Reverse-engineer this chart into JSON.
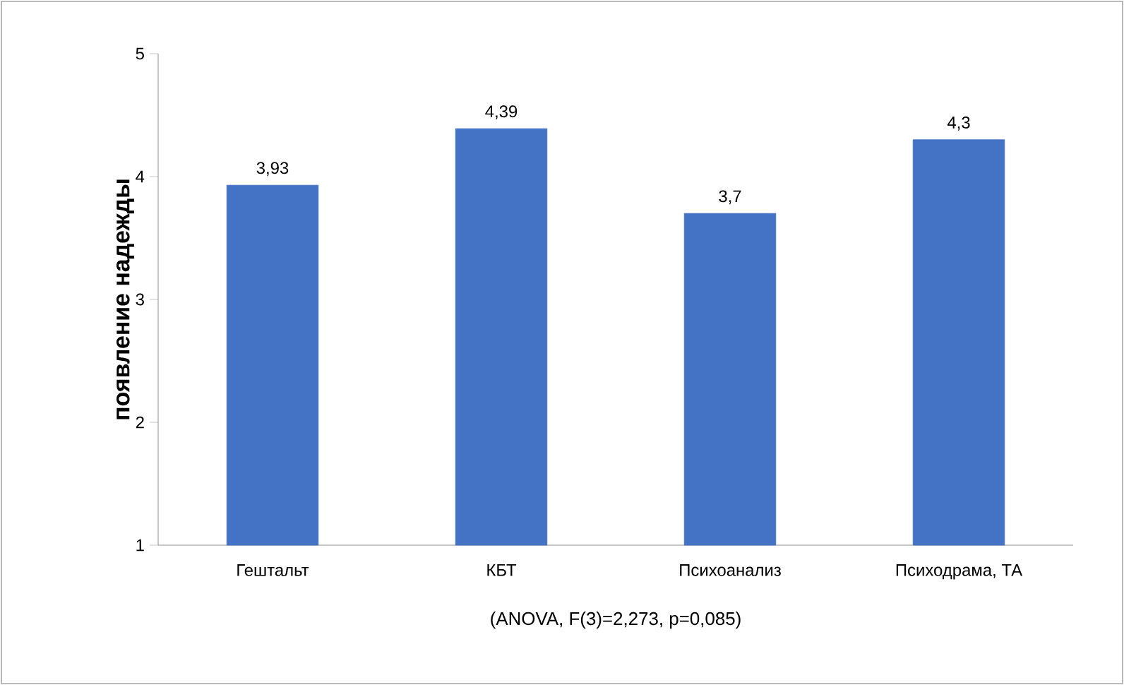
{
  "chart_data": {
    "type": "bar",
    "ylabel": "появление надежды",
    "xlabel": "(ANOVA, F(3)=2,273,  p=0,085)",
    "categories": [
      "Гештальт",
      "КБТ",
      "Психоанализ",
      "Психодрама, ТА"
    ],
    "values": [
      3.93,
      4.39,
      3.7,
      4.3
    ],
    "value_labels": [
      "3,93",
      "4,39",
      "3,7",
      "4,3"
    ],
    "color": "#4472c4",
    "ylim": [
      1,
      5
    ],
    "yticks": [
      1,
      2,
      3,
      4,
      5
    ]
  }
}
